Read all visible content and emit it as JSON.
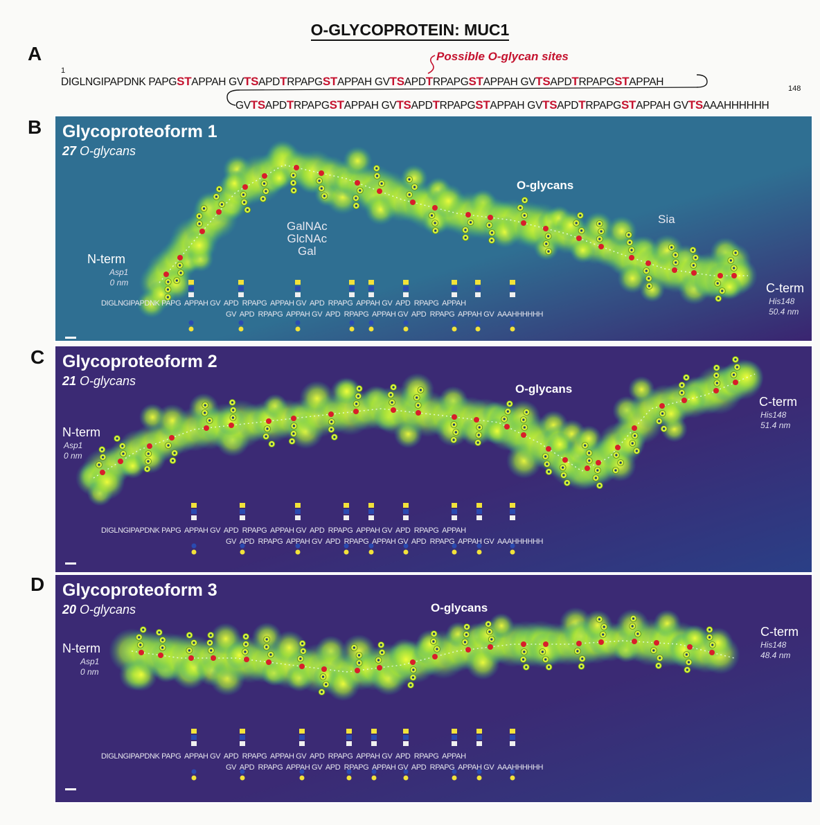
{
  "figure_title": "O-GLYCOPROTEIN: MUC1",
  "panel_a": {
    "label": "A",
    "site_label": "Possible O-glycan sites",
    "start_number": "1",
    "end_number": "148",
    "line1": [
      {
        "t": "DIGLNGIPAPDNK PAPG"
      },
      {
        "t": "ST",
        "s": true
      },
      {
        "t": "APPAH GV"
      },
      {
        "t": "TS",
        "s": true
      },
      {
        "t": "APD"
      },
      {
        "t": "T",
        "s": true
      },
      {
        "t": "RPAPG"
      },
      {
        "t": "ST",
        "s": true
      },
      {
        "t": "APPAH GV"
      },
      {
        "t": "TS",
        "s": true
      },
      {
        "t": "APD"
      },
      {
        "t": "T",
        "s": true
      },
      {
        "t": "RPAPG"
      },
      {
        "t": "ST",
        "s": true
      },
      {
        "t": "APPAH GV"
      },
      {
        "t": "TS",
        "s": true
      },
      {
        "t": "APD"
      },
      {
        "t": "T",
        "s": true
      },
      {
        "t": "RPAPG"
      },
      {
        "t": "ST",
        "s": true
      },
      {
        "t": "APPAH"
      }
    ],
    "line2": [
      {
        "t": "GV"
      },
      {
        "t": "TS",
        "s": true
      },
      {
        "t": "APD"
      },
      {
        "t": "T",
        "s": true
      },
      {
        "t": "RPAPG"
      },
      {
        "t": "ST",
        "s": true
      },
      {
        "t": "APPAH GV"
      },
      {
        "t": "TS",
        "s": true
      },
      {
        "t": "APD"
      },
      {
        "t": "T",
        "s": true
      },
      {
        "t": "RPAPG"
      },
      {
        "t": "ST",
        "s": true
      },
      {
        "t": "APPAH GV"
      },
      {
        "t": "TS",
        "s": true
      },
      {
        "t": "APD"
      },
      {
        "t": "T",
        "s": true
      },
      {
        "t": "RPAPG"
      },
      {
        "t": "ST",
        "s": true
      },
      {
        "t": "APPAH GV"
      },
      {
        "t": "TS",
        "s": true
      },
      {
        "t": "AAAHHHHHH"
      }
    ]
  },
  "panels": [
    {
      "label": "B",
      "title": "Glycoproteoform 1",
      "count": "27",
      "count_suffix": " O-glycans",
      "n_term": "N-term",
      "n_res": "Asp1",
      "n_nm": "0 nm",
      "c_term": "C-term",
      "c_res": "His148",
      "c_nm": "50.4 nm",
      "oglycans_label": "O-glycans",
      "monosaccharides": [
        "GalNAc",
        "GlcNAc",
        "Gal"
      ],
      "sia_label": "Sia",
      "seq_line1": "DIGLNGIPAPDNK PAPG  APPAH GV  APD  RPAPG  APPAH GV  APD  RPAPG  APPAH GV  APD  RPAPG  APPAH",
      "seq_line2": "GV  APD  RPAPG  APPAH GV  APD  RPAPG  APPAH GV  APD  RPAPG  APPAH GV  AAAHHHHHH",
      "background": "#2f6f92",
      "background_right": "#3a2470"
    },
    {
      "label": "C",
      "title": "Glycoproteoform 2",
      "count": "21",
      "count_suffix": " O-glycans",
      "n_term": "N-term",
      "n_res": "Asp1",
      "n_nm": "0 nm",
      "c_term": "C-term",
      "c_res": "His148",
      "c_nm": "51.4 nm",
      "oglycans_label": "O-glycans",
      "seq_line1": "DIGLNGIPAPDNK PAPG  APPAH GV  APD  RPAPG  APPAH GV  APD  RPAPG  APPAH GV  APD  RPAPG  APPAH",
      "seq_line2": "GV  APD  RPAPG  APPAH GV  APD  RPAPG  APPAH GV  APD  RPAPG  APPAH GV  AAAHHHHHH",
      "background": "#3b2a74",
      "background_right": "#2a3f86"
    },
    {
      "label": "D",
      "title": "Glycoproteoform 3",
      "count": "20",
      "count_suffix": " O-glycans",
      "n_term": "N-term",
      "n_res": "Asp1",
      "n_nm": "0 nm",
      "c_term": "C-term",
      "c_res": "His148",
      "c_nm": "48.4 nm",
      "oglycans_label": "O-glycans",
      "seq_line1": "DIGLNGIPAPDNK PAPG  APPAH GV  APD  RPAPG  APPAH GV  APD  RPAPG  APPAH GV  APD  RPAPG  APPAH",
      "seq_line2": "GV  APD  RPAPG  APPAH GV  APD  RPAPG  APPAH GV  APD  RPAPG  APPAH GV  AAAHHHHHH",
      "background": "#3b2a74",
      "background_right": "#2f3c80"
    }
  ]
}
